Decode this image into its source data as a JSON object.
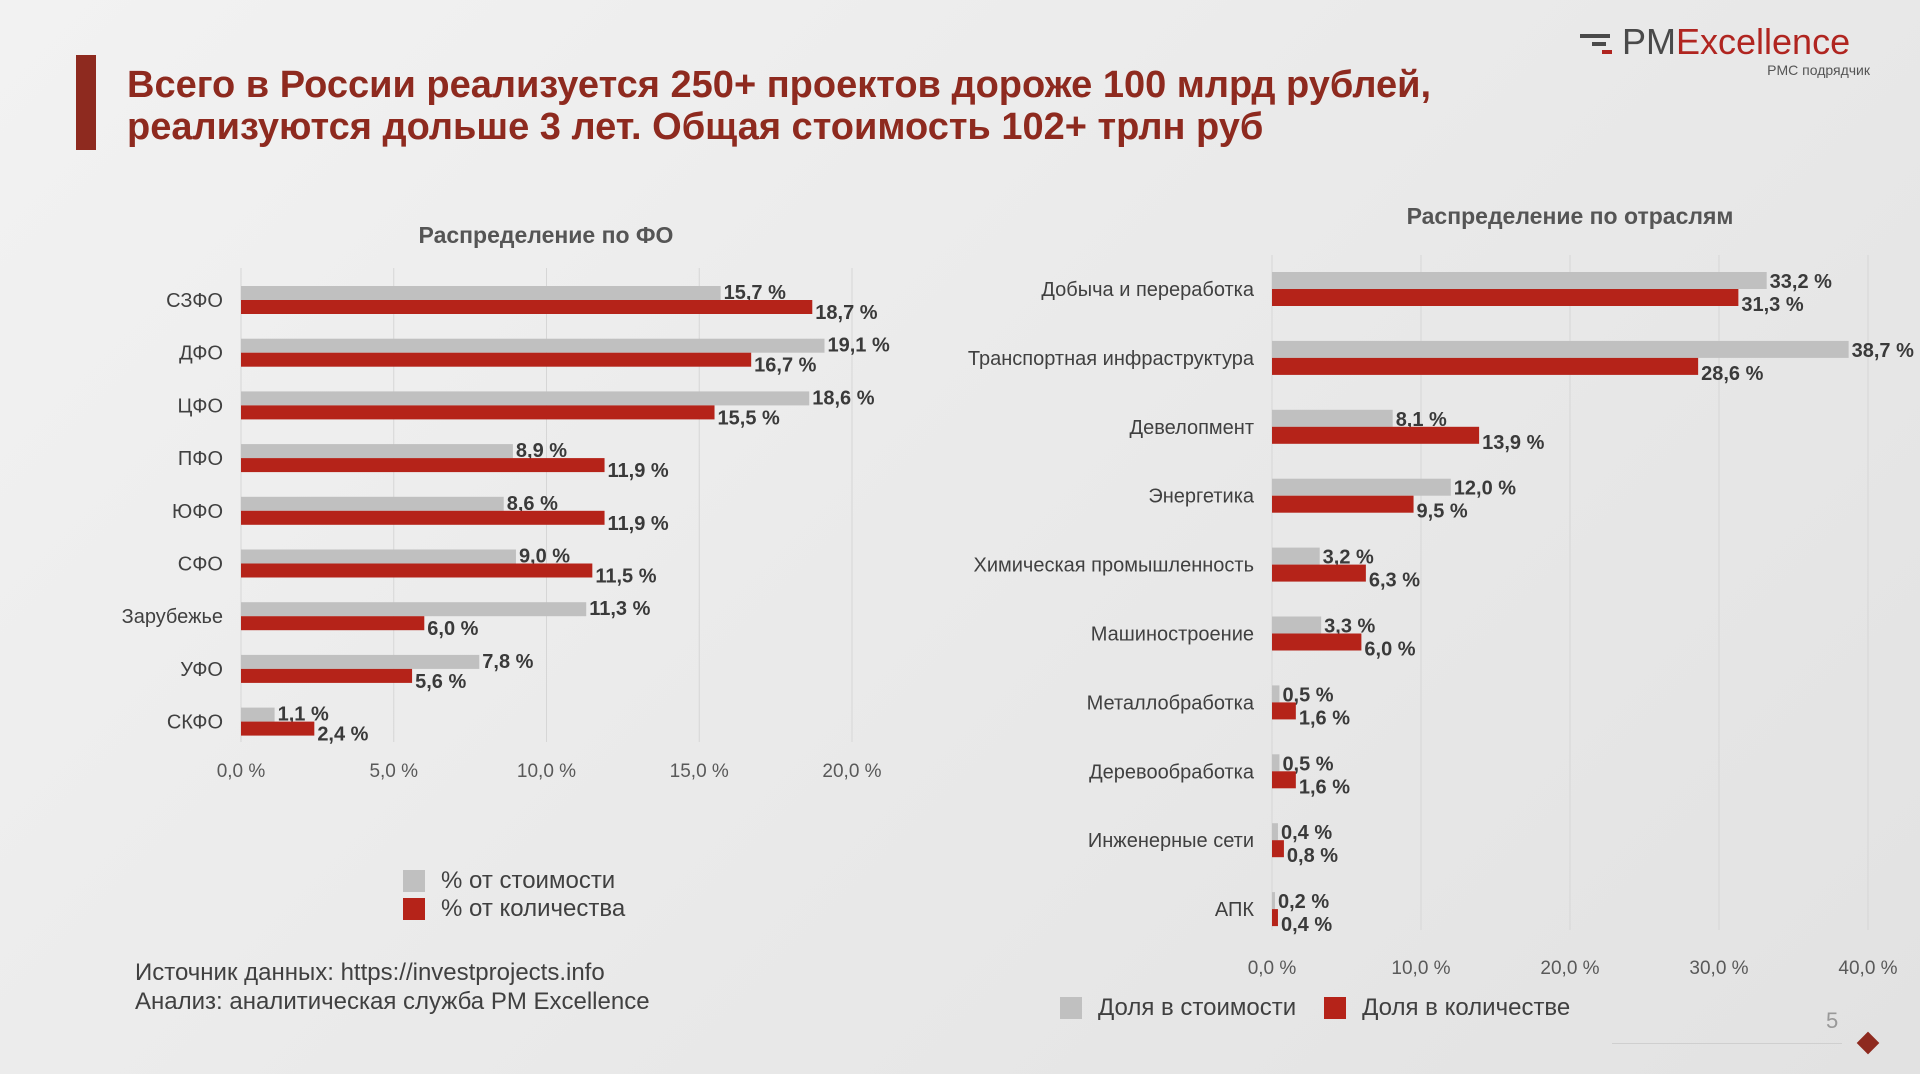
{
  "slide": {
    "title_line1": "Всего в России реализуется 250+ проектов дороже 100 млрд рублей,",
    "title_line2": "реализуются дольше 3 лет. Общая стоимость 102+ трлн руб",
    "page_number": "5",
    "accent_color": "#8e2a1f"
  },
  "logo": {
    "text_pm": "PM",
    "text_ex": "Excellence",
    "subtitle": "PMC подрядчик"
  },
  "source": {
    "line1": "Источник данных: https://investprojects.info",
    "line2": "Анализ: аналитическая служба PM Excellence"
  },
  "chart_data": [
    {
      "type": "bar",
      "orientation": "horizontal",
      "title": "Распределение по ФО",
      "categories": [
        "СЗФО",
        "ДФО",
        "ЦФО",
        "ПФО",
        "ЮФО",
        "СФО",
        "Зарубежье",
        "УФО",
        "СКФО"
      ],
      "series": [
        {
          "name": "% от стоимости",
          "color": "#c0c0c0",
          "values": [
            15.7,
            19.1,
            18.6,
            8.9,
            8.6,
            9.0,
            11.3,
            7.8,
            1.1
          ]
        },
        {
          "name": "% от количества",
          "color": "#b52319",
          "values": [
            18.7,
            16.7,
            15.5,
            11.9,
            11.9,
            11.5,
            6.0,
            5.6,
            2.4
          ]
        }
      ],
      "xlim": [
        0,
        20
      ],
      "xticks": [
        0,
        5,
        10,
        15,
        20
      ],
      "xtick_labels": [
        "0,0 %",
        "5,0 %",
        "10,0 %",
        "15,0 %",
        "20,0 %"
      ],
      "grid": true,
      "legend_position": "bottom"
    },
    {
      "type": "bar",
      "orientation": "horizontal",
      "title": "Распределение по отраслям",
      "categories": [
        "Добыча и переработка",
        "Транспортная инфраструктура",
        "Девелопмент",
        "Энергетика",
        "Химическая промышленность",
        "Машиностроение",
        "Металлобработка",
        "Деревообработка",
        "Инженерные сети",
        "АПК"
      ],
      "series": [
        {
          "name": "Доля в стоимости",
          "color": "#c0c0c0",
          "values": [
            33.2,
            38.7,
            8.1,
            12.0,
            3.2,
            3.3,
            0.5,
            0.5,
            0.4,
            0.2
          ]
        },
        {
          "name": "Доля в количестве",
          "color": "#b52319",
          "values": [
            31.3,
            28.6,
            13.9,
            9.5,
            6.3,
            6.0,
            1.6,
            1.6,
            0.8,
            0.4
          ]
        }
      ],
      "xlim": [
        0,
        40
      ],
      "xticks": [
        0,
        10,
        20,
        30,
        40
      ],
      "xtick_labels": [
        "0,0 %",
        "10,0 %",
        "20,0 %",
        "30,0 %",
        "40,0 %"
      ],
      "grid": true,
      "legend_position": "bottom"
    }
  ]
}
